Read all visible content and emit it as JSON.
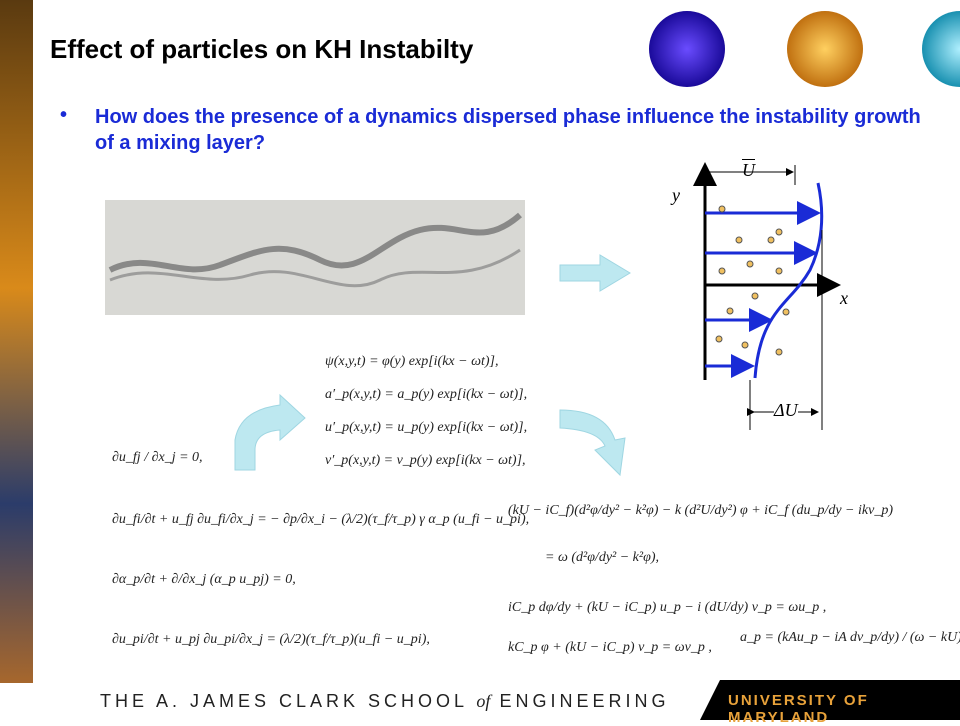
{
  "header": {
    "title": "Effect of particles on KH Instabilty"
  },
  "bullets": [
    "How does the presence of a dynamics dispersed phase influence the instability growth of a mixing layer?"
  ],
  "diagram": {
    "labels": {
      "y": "y",
      "x": "x",
      "u_bar": "U",
      "delta_u": "ΔU"
    }
  },
  "equations": {
    "governing": [
      "∂u_fj / ∂x_j = 0,",
      "∂u_fi/∂t + u_fj ∂u_fi/∂x_j = − ∂p/∂x_i − (λ/2)(τ_f/τ_p) γ α_p (u_fi − u_pi),",
      "∂α_p/∂t + ∂/∂x_j (α_p u_pj) = 0,",
      "∂u_pi/∂t + u_pj ∂u_pi/∂x_j = (λ/2)(τ_f/τ_p)(u_fi − u_pi),"
    ],
    "perturbations": [
      "ψ(x,y,t) = φ(y) exp[i(kx − ωt)],",
      "a′_p(x,y,t) = a_p(y) exp[i(kx − ωt)],",
      "u′_p(x,y,t) = u_p(y) exp[i(kx − ωt)],",
      "v′_p(x,y,t) = v_p(y) exp[i(kx − ωt)],"
    ],
    "stability": [
      "(kU − iC_f)(d²φ/dy² − k²φ) − k (d²U/dy²) φ + iC_f (du_p/dy − ikv_p)",
      "= ω (d²φ/dy² − k²φ),",
      "iC_p dφ/dy + (kU − iC_p) u_p − i (dU/dy) v_p = ωu_p ,",
      "kC_p φ + (kU − iC_p) v_p = ωv_p ,",
      "a_p = (kAu_p − iA dv_p/dy) / (ω − kU)."
    ]
  },
  "footer": {
    "school": "THE A. JAMES CLARK SCHOOL",
    "of": "of",
    "engineering": "ENGINEERING",
    "university": "UNIVERSITY OF MARYLAND"
  }
}
